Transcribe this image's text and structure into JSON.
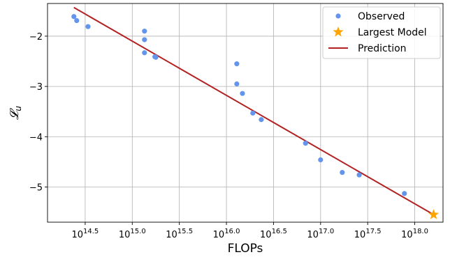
{
  "chart_data": {
    "type": "scatter",
    "xlabel": "FLOPs",
    "ylabel": "𝓛",
    "ylabel_sub": "u",
    "x_scale": "log10",
    "xlim": [
      14.1,
      18.3
    ],
    "ylim": [
      -5.7,
      -1.35
    ],
    "grid": true,
    "legend_position": "top-right",
    "x_ticks": [
      {
        "exp": 14.5,
        "base": "10",
        "sup": "14.5"
      },
      {
        "exp": 15.0,
        "base": "10",
        "sup": "15.0"
      },
      {
        "exp": 15.5,
        "base": "10",
        "sup": "15.5"
      },
      {
        "exp": 16.0,
        "base": "10",
        "sup": "16.0"
      },
      {
        "exp": 16.5,
        "base": "10",
        "sup": "16.5"
      },
      {
        "exp": 17.0,
        "base": "10",
        "sup": "17.0"
      },
      {
        "exp": 17.5,
        "base": "10",
        "sup": "17.5"
      },
      {
        "exp": 18.0,
        "base": "10",
        "sup": "18.0"
      }
    ],
    "y_ticks": [
      {
        "value": -2,
        "label": "−2"
      },
      {
        "value": -3,
        "label": "−3"
      },
      {
        "value": -4,
        "label": "−4"
      },
      {
        "value": -5,
        "label": "−5"
      }
    ],
    "series": [
      {
        "name": "Observed",
        "kind": "scatter",
        "color": "#6495ED",
        "points": [
          [
            14.38,
            -1.61
          ],
          [
            14.41,
            -1.69
          ],
          [
            14.53,
            -1.81
          ],
          [
            15.13,
            -1.9
          ],
          [
            15.13,
            -2.07
          ],
          [
            15.13,
            -2.33
          ],
          [
            15.24,
            -2.41
          ],
          [
            15.25,
            -2.42
          ],
          [
            16.11,
            -2.55
          ],
          [
            16.11,
            -2.95
          ],
          [
            16.17,
            -3.14
          ],
          [
            16.28,
            -3.53
          ],
          [
            16.37,
            -3.66
          ],
          [
            16.84,
            -4.13
          ],
          [
            17.0,
            -4.46
          ],
          [
            17.23,
            -4.71
          ],
          [
            17.41,
            -4.76
          ],
          [
            17.89,
            -5.13
          ]
        ]
      },
      {
        "name": "Largest Model",
        "kind": "star",
        "color": "#FFA500",
        "points": [
          [
            18.2,
            -5.55
          ]
        ]
      },
      {
        "name": "Prediction",
        "kind": "line",
        "color": "#B22222",
        "points": [
          [
            14.38,
            -1.43
          ],
          [
            18.2,
            -5.55
          ]
        ]
      }
    ]
  }
}
